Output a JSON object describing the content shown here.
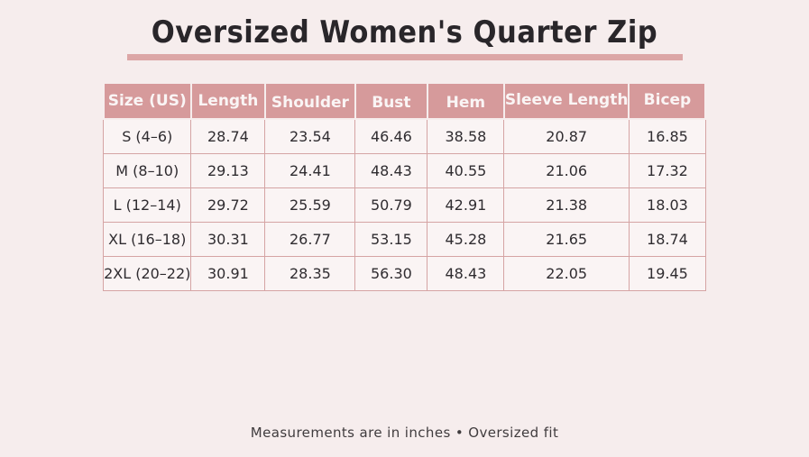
{
  "page": {
    "title": "Oversized Women's Quarter Zip",
    "footer_note": "Measurements are in inches • Oversized fit"
  },
  "colors": {
    "page_background": "#f6eded",
    "accent_underline": "#dca6a6",
    "header_background": "#d69a9b",
    "header_text": "#faf5f5",
    "cell_background": "#faf4f4",
    "cell_border": "#d5a4a4",
    "title_text": "#29262a",
    "body_text": "#2f2c30"
  },
  "chart_data": {
    "type": "table",
    "title": "Oversized Women's Quarter Zip",
    "columns": [
      "Size (US)",
      "Length",
      "Shoulder",
      "Bust",
      "Hem",
      "Sleeve Length",
      "Bicep"
    ],
    "rows": [
      [
        "S (4–6)",
        "28.74",
        "23.54",
        "46.46",
        "38.58",
        "20.87",
        "16.85"
      ],
      [
        "M (8–10)",
        "29.13",
        "24.41",
        "48.43",
        "40.55",
        "21.06",
        "17.32"
      ],
      [
        "L (12–14)",
        "29.72",
        "25.59",
        "50.79",
        "42.91",
        "21.38",
        "18.03"
      ],
      [
        "XL (16–18)",
        "30.31",
        "26.77",
        "53.15",
        "45.28",
        "21.65",
        "18.74"
      ],
      [
        "2XL (20–22)",
        "30.91",
        "28.35",
        "56.30",
        "48.43",
        "22.05",
        "19.45"
      ]
    ],
    "units": "inches",
    "note": "Measurements are in inches • Oversized fit"
  }
}
